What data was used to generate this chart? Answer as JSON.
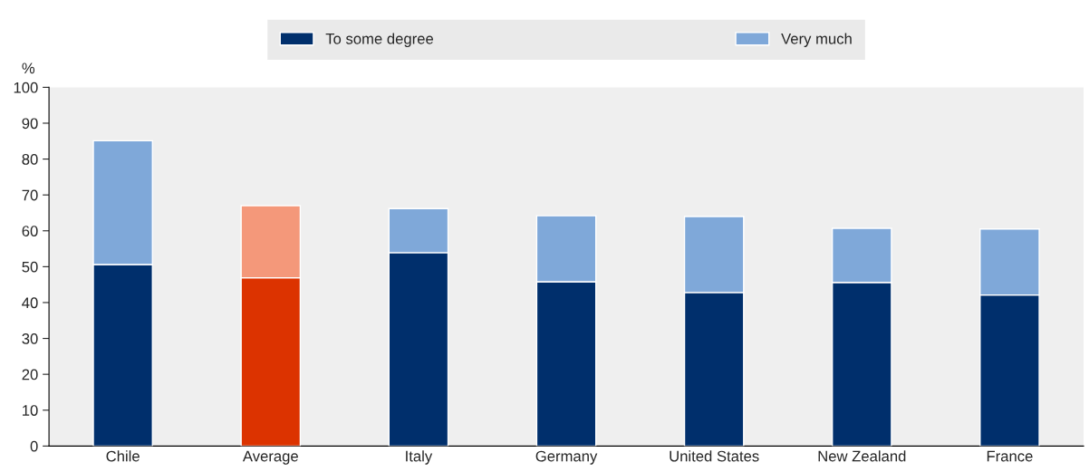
{
  "chart_data": {
    "type": "bar",
    "stacked": true,
    "ylabel": "%",
    "categories": [
      "Chile",
      "Average",
      "Italy",
      "Germany",
      "United States",
      "New Zealand",
      "France"
    ],
    "series": [
      {
        "name": "To some degree",
        "color": "#002f6c",
        "colors": [
          "#002f6c",
          "#dc3300",
          "#002f6c",
          "#002f6c",
          "#002f6c",
          "#002f6c",
          "#002f6c"
        ],
        "values": [
          50.6,
          46.9,
          53.9,
          45.8,
          42.8,
          45.6,
          42.1
        ]
      },
      {
        "name": "Very much",
        "color": "#7fa8d9",
        "colors": [
          "#7fa8d9",
          "#f4987a",
          "#7fa8d9",
          "#7fa8d9",
          "#7fa8d9",
          "#7fa8d9",
          "#7fa8d9"
        ],
        "values": [
          34.5,
          20.1,
          12.3,
          18.4,
          21.2,
          15.1,
          18.4
        ]
      }
    ],
    "ylim": [
      0,
      100
    ],
    "yticks": [
      0,
      10,
      20,
      30,
      40,
      50,
      60,
      70,
      80,
      90,
      100
    ],
    "legend": "top",
    "grid": false
  }
}
